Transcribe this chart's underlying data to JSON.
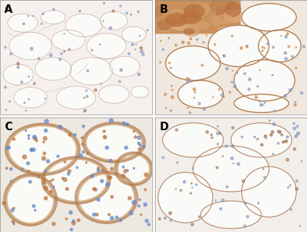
{
  "panels": [
    "A",
    "B",
    "C",
    "D"
  ],
  "label_fontsize": 11,
  "label_color": "black",
  "label_weight": "bold",
  "figsize": [
    4.32,
    3.26
  ],
  "dpi": 100,
  "panel_A": {
    "bg_color": "#f5f0ed",
    "wall_color": "#c4a898",
    "cell_color_blue": "#8899bb",
    "cell_color_brown": "#aa7755"
  },
  "panel_B": {
    "bg_color": "#f0e8df",
    "wall_color": "#b07848",
    "cell_color_blue": "#8899bb",
    "cell_color_brown": "#cc8844",
    "mass_color": "#c8905a"
  },
  "panel_C": {
    "bg_color": "#ede8e0",
    "wall_color": "#b07848",
    "cell_color_blue": "#6688cc",
    "cell_color_brown": "#bb7744"
  },
  "panel_D": {
    "bg_color": "#f2eeea",
    "wall_color": "#b08060",
    "cell_color_blue": "#8899bb",
    "cell_color_brown": "#aa7755"
  }
}
